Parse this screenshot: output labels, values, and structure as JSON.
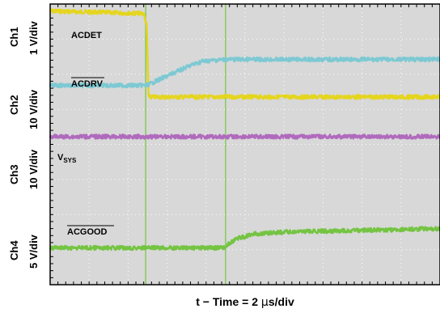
{
  "chart_data": {
    "type": "line",
    "x_unit_per_div": "2 µs/div",
    "x_divisions": 10,
    "xlim": [
      0,
      20
    ],
    "y_divisions": 8,
    "ylim": [
      0,
      8
    ],
    "grid": true,
    "background": "#d8d8d8",
    "xlabel_parts": {
      "prefix": "t − Time = 2 ",
      "greek": "μ",
      "suffix": "s/div"
    },
    "channel_labels": [
      {
        "ch": "Ch1",
        "scale": "1 V/div"
      },
      {
        "ch": "Ch2",
        "scale": "10 V/div"
      },
      {
        "ch": "Ch3",
        "scale": "10 V/div"
      },
      {
        "ch": "Ch4",
        "scale": "5 V/div"
      }
    ],
    "trace_labels": {
      "acdet": "ACDET",
      "acdrv": "ACDRV",
      "vsys_main": "V",
      "vsys_sub": "SYS",
      "acgood": "ACGOOD"
    },
    "cursors_x": [
      4.9,
      9.0
    ],
    "series": [
      {
        "name": "ACDET",
        "color": "#e5d51d",
        "x": [
          0,
          4.8,
          4.95,
          5.05,
          20
        ],
        "y": [
          7.8,
          7.73,
          7.4,
          5.35,
          5.35
        ]
      },
      {
        "name": "ACDRV",
        "color": "#7dc9d3",
        "x": [
          0,
          4.95,
          6.2,
          7.2,
          7.8,
          9.0,
          20
        ],
        "y": [
          5.68,
          5.68,
          6.0,
          6.25,
          6.37,
          6.42,
          6.42
        ]
      },
      {
        "name": "VSYS",
        "color": "#b06abd",
        "x": [
          0,
          20
        ],
        "y": [
          4.22,
          4.22
        ]
      },
      {
        "name": "ACGOOD",
        "color": "#74c442",
        "x": [
          0,
          8.9,
          9.5,
          10.5,
          12,
          20
        ],
        "y": [
          1.05,
          1.05,
          1.3,
          1.45,
          1.5,
          1.6
        ]
      }
    ]
  }
}
